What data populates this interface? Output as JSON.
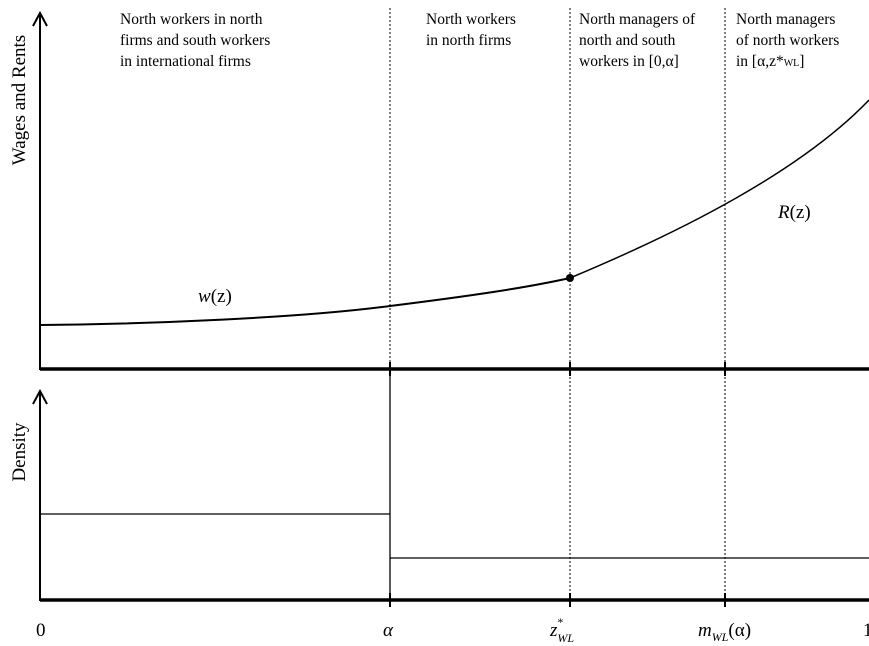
{
  "top_panel": {
    "ylabel": "Wages and Rents",
    "regions": [
      {
        "lines": [
          "North workers in north",
          "firms and south workers",
          "in international firms"
        ]
      },
      {
        "lines": [
          "North workers",
          "in north firms"
        ]
      },
      {
        "lines": [
          "North managers of",
          "north and south",
          "workers in [0,α]"
        ]
      },
      {
        "lines": [
          "North managers",
          "of north workers"
        ],
        "last_line": {
          "prefix": "in [α,z*",
          "sub": "WL",
          "suffix": "]"
        }
      }
    ],
    "curves": {
      "wage": {
        "name": "w",
        "arg": "(z)"
      },
      "rent": {
        "name": "R",
        "arg": "(z)"
      }
    }
  },
  "bottom_panel": {
    "ylabel": "Density"
  },
  "x_ticks": {
    "zero": "0",
    "alpha": "α",
    "zstar": {
      "base": "z",
      "sup": "*",
      "sub": "WL"
    },
    "m": {
      "base": "m",
      "sub": "WL",
      "arg": "(α)"
    },
    "one": "1"
  }
}
